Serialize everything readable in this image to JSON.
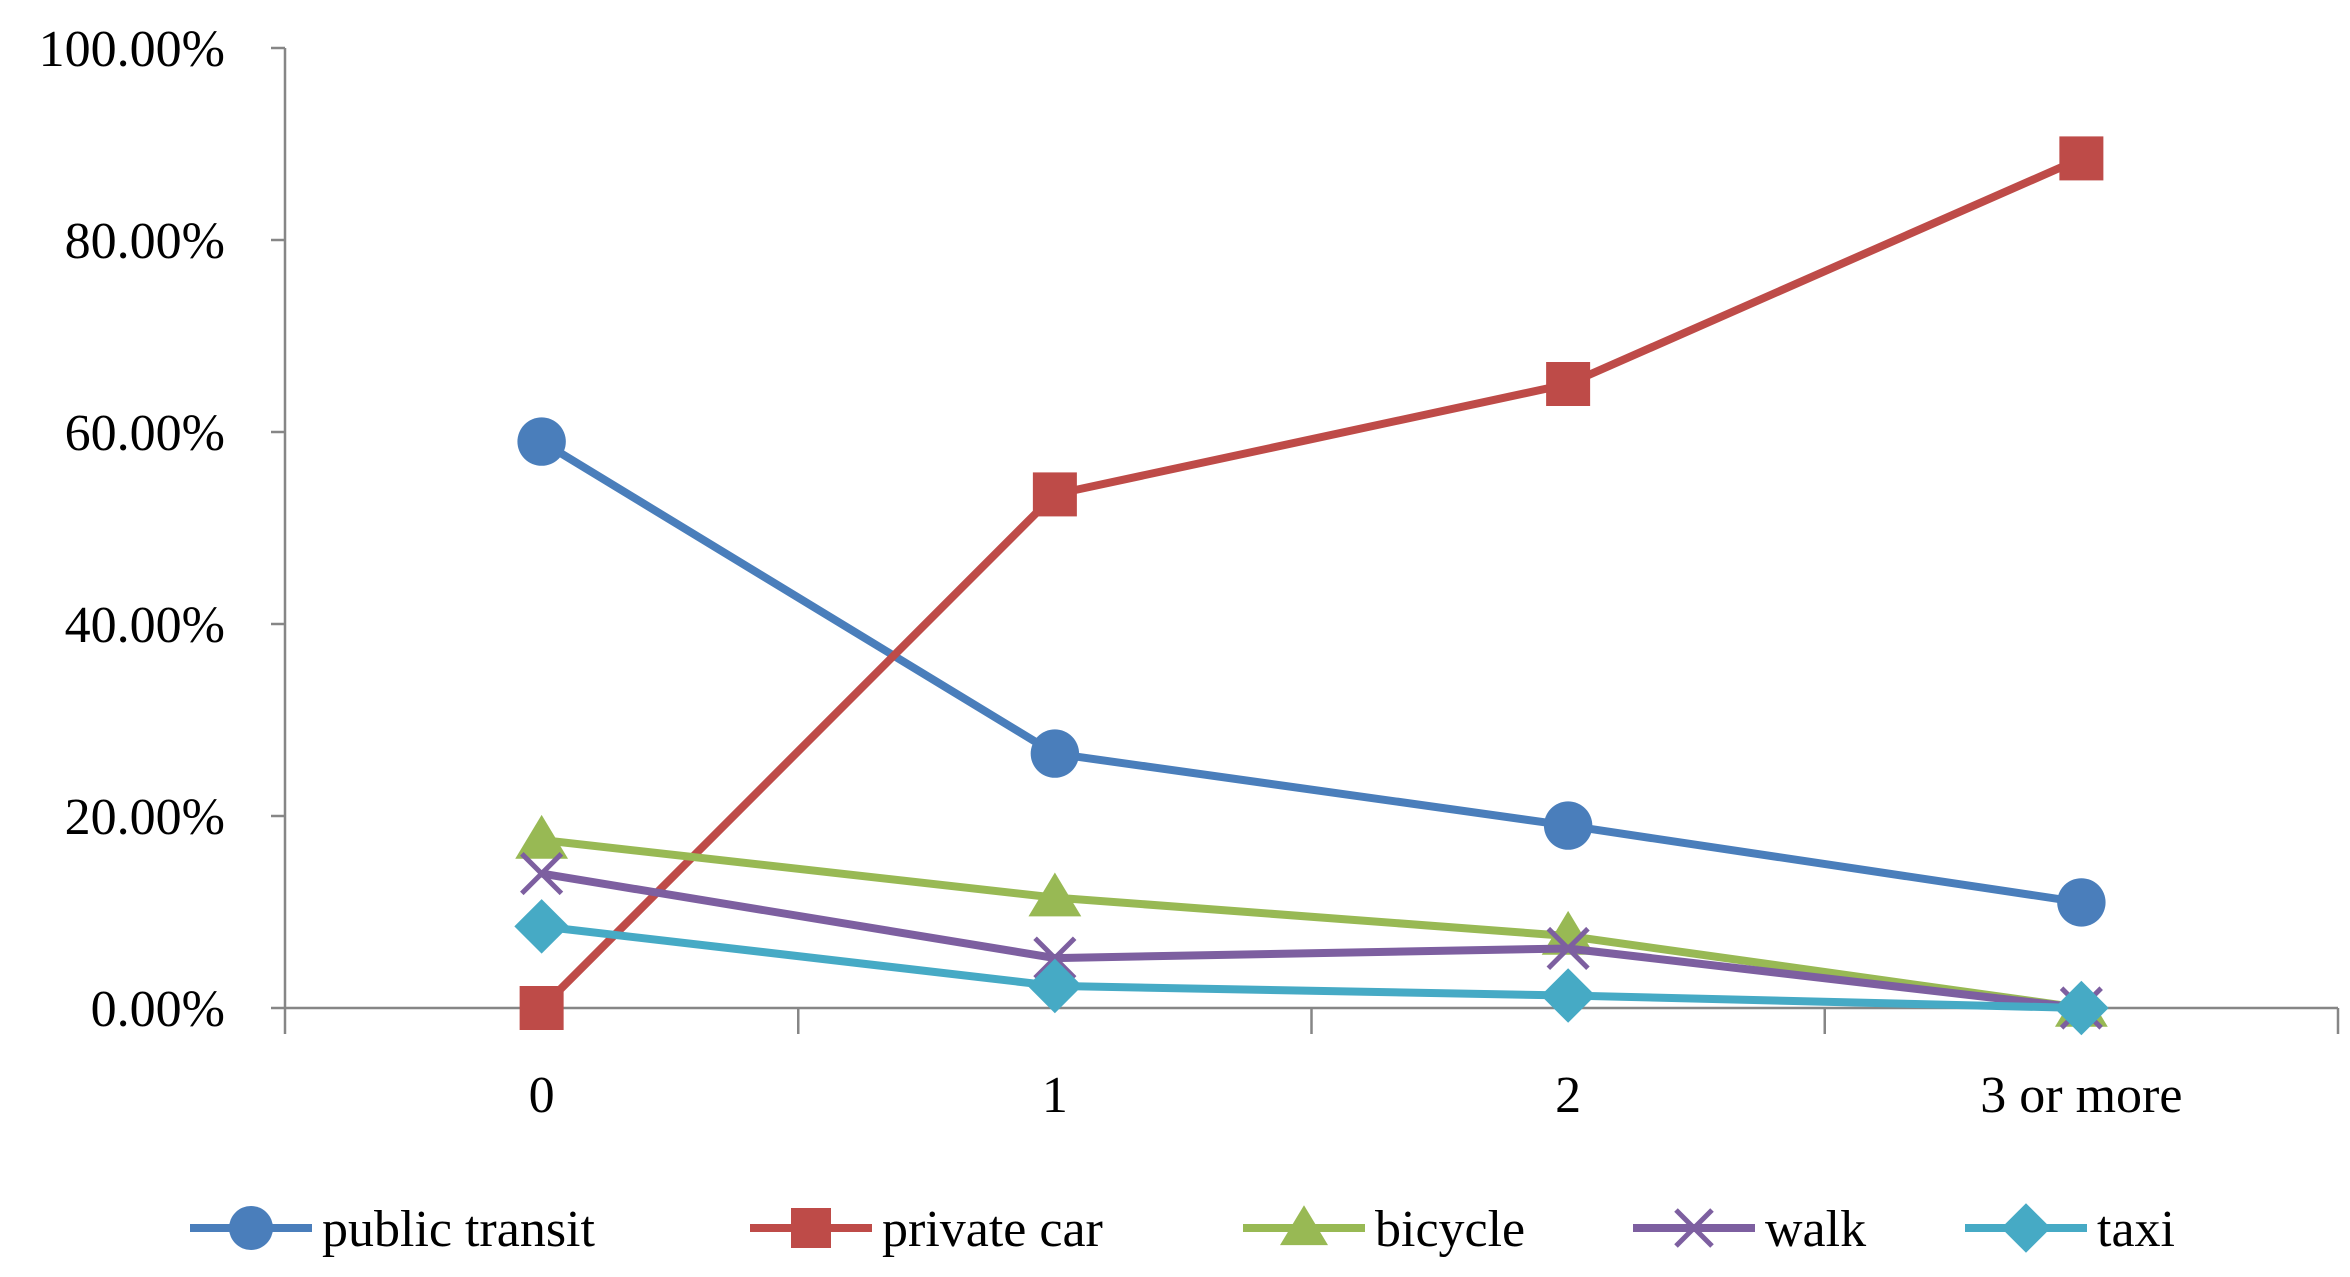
{
  "chart_data": {
    "type": "line",
    "title": "",
    "xlabel": "",
    "ylabel": "",
    "categories": [
      "0",
      "1",
      "2",
      "3 or more"
    ],
    "ylim": [
      0,
      100
    ],
    "yticks": [
      "0.00%",
      "20.00%",
      "40.00%",
      "60.00%",
      "80.00%",
      "100.00%"
    ],
    "ytick_values": [
      0,
      20,
      40,
      60,
      80,
      100
    ],
    "grid": false,
    "legend_position": "bottom",
    "series": [
      {
        "name": "public transit",
        "color": "#4a7ebb",
        "marker": "circle",
        "values": [
          59.0,
          26.5,
          19.0,
          11.0
        ]
      },
      {
        "name": "private car",
        "color": "#be4b48",
        "marker": "square",
        "values": [
          0.0,
          53.5,
          65.0,
          88.5
        ]
      },
      {
        "name": "bicycle",
        "color": "#98b954",
        "marker": "triangle",
        "values": [
          17.5,
          11.5,
          7.5,
          0.0
        ]
      },
      {
        "name": "walk",
        "color": "#7d5fa0",
        "marker": "x",
        "values": [
          14.0,
          5.2,
          6.2,
          0.0
        ]
      },
      {
        "name": "taxi",
        "color": "#46aac5",
        "marker": "diamond",
        "values": [
          8.5,
          2.3,
          1.3,
          0.0
        ]
      }
    ]
  }
}
